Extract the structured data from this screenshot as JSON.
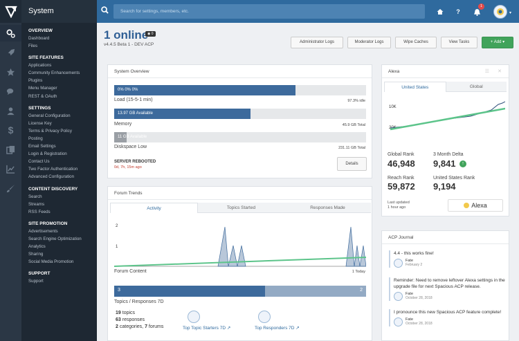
{
  "app": {
    "title": "System"
  },
  "search": {
    "placeholder": "Search for settings, members, etc."
  },
  "notifications": {
    "count": "1"
  },
  "nav": [
    {
      "heading": "OVERVIEW",
      "items": [
        "Dashboard",
        "Files"
      ]
    },
    {
      "heading": "SITE FEATURES",
      "items": [
        "Applications",
        "Community Enhancements",
        "Plugins",
        "Menu Manager",
        "REST & OAuth"
      ]
    },
    {
      "heading": "SETTINGS",
      "items": [
        "General Configuration",
        "License Key",
        "Terms & Privacy Policy",
        "Posting",
        "Email Settings",
        "Login & Registration",
        "Contact Us",
        "Two Factor Authentication",
        "Advanced Configuration"
      ]
    },
    {
      "heading": "CONTENT DISCOVERY",
      "items": [
        "Search",
        "Streams",
        "RSS Feeds"
      ]
    },
    {
      "heading": "SITE PROMOTION",
      "items": [
        "Advertisements",
        "Search Engine Optimization",
        "Analytics",
        "Sharing",
        "Social Media Promotion"
      ]
    },
    {
      "heading": "SUPPORT",
      "items": [
        "Support"
      ]
    }
  ],
  "header": {
    "title": "1 online",
    "badge": "0",
    "version": "v4.4.5 Beta 1 - DEV ACP",
    "buttons": [
      "Administrator Logs",
      "Moderator Logs",
      "Wipe Caches",
      "View Tasks"
    ],
    "add_label": "+ Add ▾"
  },
  "system": {
    "title": "System Overview",
    "load": {
      "bar_text": "0%  0%  0%",
      "label": "Load (15-5-1 min)",
      "right": "97.3% idle",
      "fraction": 0.72
    },
    "memory": {
      "bar_text": "13.97 GB Available",
      "label": "Memory",
      "right": "45.9 GB Total",
      "fraction": 0.54
    },
    "disk": {
      "bar_text": "11 GB Available",
      "label": "Diskspace Low",
      "right": "231.11 GB Total",
      "fraction": 0.05
    },
    "reboot_title": "SERVER REBOOTED",
    "reboot_time": "0d, 7h, 15m ago",
    "details_label": "Details"
  },
  "forum": {
    "title": "Forum Trends",
    "tabs": [
      "Activity",
      "Topics Started",
      "Responses Made"
    ],
    "y_labels": [
      "2",
      "1"
    ],
    "chart_label": "Forum Content",
    "today": "1 Today",
    "split_left": "3",
    "split_right": "2",
    "split_fraction": 0.6,
    "split_label": "Topics / Responses 7D",
    "topics": "19",
    "topics_label": "topics",
    "responses": "63",
    "responses_label": "responses",
    "categories": "2",
    "categories_label": "categories,",
    "forums": "7",
    "forums_label": "forums",
    "starters_label": "Top Topic Starters 7D",
    "responders_label": "Top Responders 7D"
  },
  "alexa": {
    "title": "Alexa",
    "tabs": [
      "United States",
      "Global"
    ],
    "y_top": "10K",
    "y_bottom": "20K",
    "global_rank_label": "Global Rank",
    "global_rank": "46,948",
    "delta_label": "3 Month Delta",
    "delta": "9,841",
    "reach_label": "Reach Rank",
    "reach": "59,872",
    "us_label": "United States Rank",
    "us": "9,194",
    "updated_label": "Last updated",
    "updated": "1 hour ago",
    "logo": "Alexa"
  },
  "journal": {
    "title": "ACP Journal",
    "entries": [
      {
        "text": "4.4 - this works fine!",
        "author": "Fate",
        "date": "February 2"
      },
      {
        "text": "Reminder: Need to remove leftover Alexa settings in the upgrade file for next Spacious ACP release.",
        "author": "Fate",
        "date": "October 28, 2018"
      },
      {
        "text": "I pronounce this new Spacious ACP feature complete!",
        "author": "Fate",
        "date": "October 28, 2018"
      }
    ]
  },
  "colors": {
    "accent": "#2f6a9e",
    "sidebar": "#1e2833",
    "green": "#41a35b",
    "bar": "#3d6a9c"
  }
}
